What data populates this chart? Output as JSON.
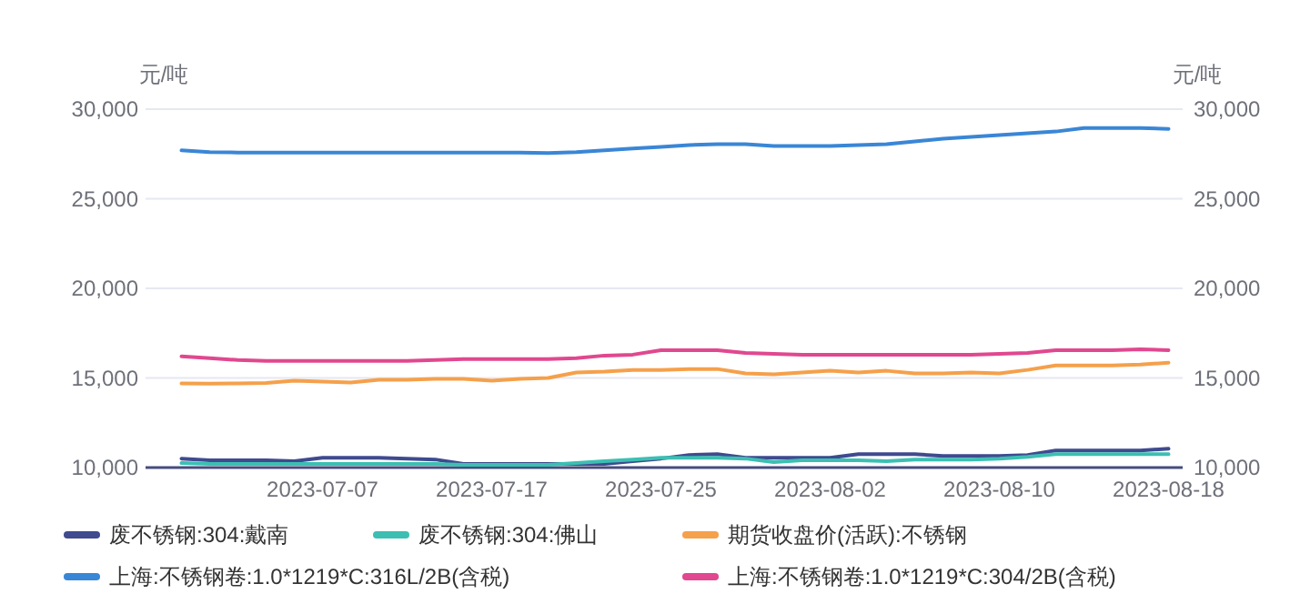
{
  "chart_data": {
    "type": "line",
    "ylabel": "元/吨",
    "y2label": "元/吨",
    "categories": [
      null,
      null,
      null,
      null,
      null,
      "2023-07-07",
      null,
      null,
      null,
      null,
      null,
      "2023-07-17",
      null,
      null,
      null,
      null,
      null,
      "2023-07-25",
      null,
      null,
      null,
      null,
      null,
      "2023-08-02",
      null,
      null,
      null,
      null,
      null,
      "2023-08-10",
      null,
      null,
      null,
      null,
      null,
      "2023-08-18"
    ],
    "series": [
      {
        "name": "废不锈钢:304:戴南",
        "color": "#3f4a8f",
        "values": [
          10500,
          10400,
          10400,
          10400,
          10350,
          10550,
          10550,
          10550,
          10500,
          10450,
          10200,
          10200,
          10200,
          10200,
          10200,
          10200,
          10350,
          10500,
          10700,
          10750,
          10550,
          10550,
          10550,
          10550,
          10750,
          10750,
          10750,
          10650,
          10650,
          10650,
          10700,
          10950,
          10950,
          10950,
          10950,
          11050
        ]
      },
      {
        "name": "废不锈钢:304:佛山",
        "color": "#3cbfb2",
        "values": [
          10250,
          10200,
          10200,
          10200,
          10200,
          10200,
          10200,
          10200,
          10200,
          10200,
          10150,
          10150,
          10150,
          10150,
          10250,
          10350,
          10450,
          10550,
          10550,
          10550,
          10500,
          10300,
          10400,
          10400,
          10400,
          10350,
          10450,
          10450,
          10450,
          10500,
          10600,
          10750,
          10750,
          10750,
          10750,
          10750
        ]
      },
      {
        "name": "期货收盘价(活跃):不锈钢",
        "color": "#f5a04b",
        "values": [
          14700,
          14680,
          14700,
          14720,
          14850,
          14800,
          14750,
          14900,
          14900,
          14950,
          14950,
          14850,
          14950,
          15000,
          15300,
          15350,
          15450,
          15450,
          15500,
          15500,
          15250,
          15200,
          15300,
          15400,
          15300,
          15400,
          15250,
          15250,
          15300,
          15250,
          15450,
          15700,
          15700,
          15700,
          15750,
          15850
        ]
      },
      {
        "name": "上海:不锈钢卷:1.0*1219*C:316L/2B(含税)",
        "color": "#3a86d6",
        "values": [
          27700,
          27600,
          27580,
          27580,
          27580,
          27580,
          27580,
          27580,
          27580,
          27580,
          27580,
          27580,
          27580,
          27550,
          27600,
          27700,
          27800,
          27900,
          28000,
          28050,
          28050,
          27950,
          27950,
          27950,
          28000,
          28050,
          28200,
          28350,
          28450,
          28550,
          28650,
          28750,
          28950,
          28950,
          28950,
          28900
        ]
      },
      {
        "name": "上海:不锈钢卷:1.0*1219*C:304/2B(含税)",
        "color": "#e0488f",
        "values": [
          16200,
          16100,
          16000,
          15950,
          15950,
          15950,
          15950,
          15950,
          15950,
          16000,
          16050,
          16050,
          16050,
          16050,
          16100,
          16250,
          16300,
          16550,
          16550,
          16550,
          16400,
          16350,
          16300,
          16300,
          16300,
          16300,
          16300,
          16300,
          16300,
          16350,
          16400,
          16550,
          16550,
          16550,
          16600,
          16550
        ]
      }
    ],
    "ylim": [
      10000,
      30000
    ],
    "yticks": [
      {
        "value": 10000,
        "label": "10,000"
      },
      {
        "value": 15000,
        "label": "15,000"
      },
      {
        "value": 20000,
        "label": "20,000"
      },
      {
        "value": 25000,
        "label": "25,000"
      },
      {
        "value": 30000,
        "label": "30,000"
      }
    ],
    "y2lim": [
      10000,
      30000
    ],
    "y2ticks": [
      {
        "value": 10000,
        "label": "10,000"
      },
      {
        "value": 15000,
        "label": "15,000"
      },
      {
        "value": 20000,
        "label": "20,000"
      },
      {
        "value": 25000,
        "label": "25,000"
      },
      {
        "value": 30000,
        "label": "30,000"
      }
    ],
    "grid": "y",
    "legend": "bottom"
  }
}
